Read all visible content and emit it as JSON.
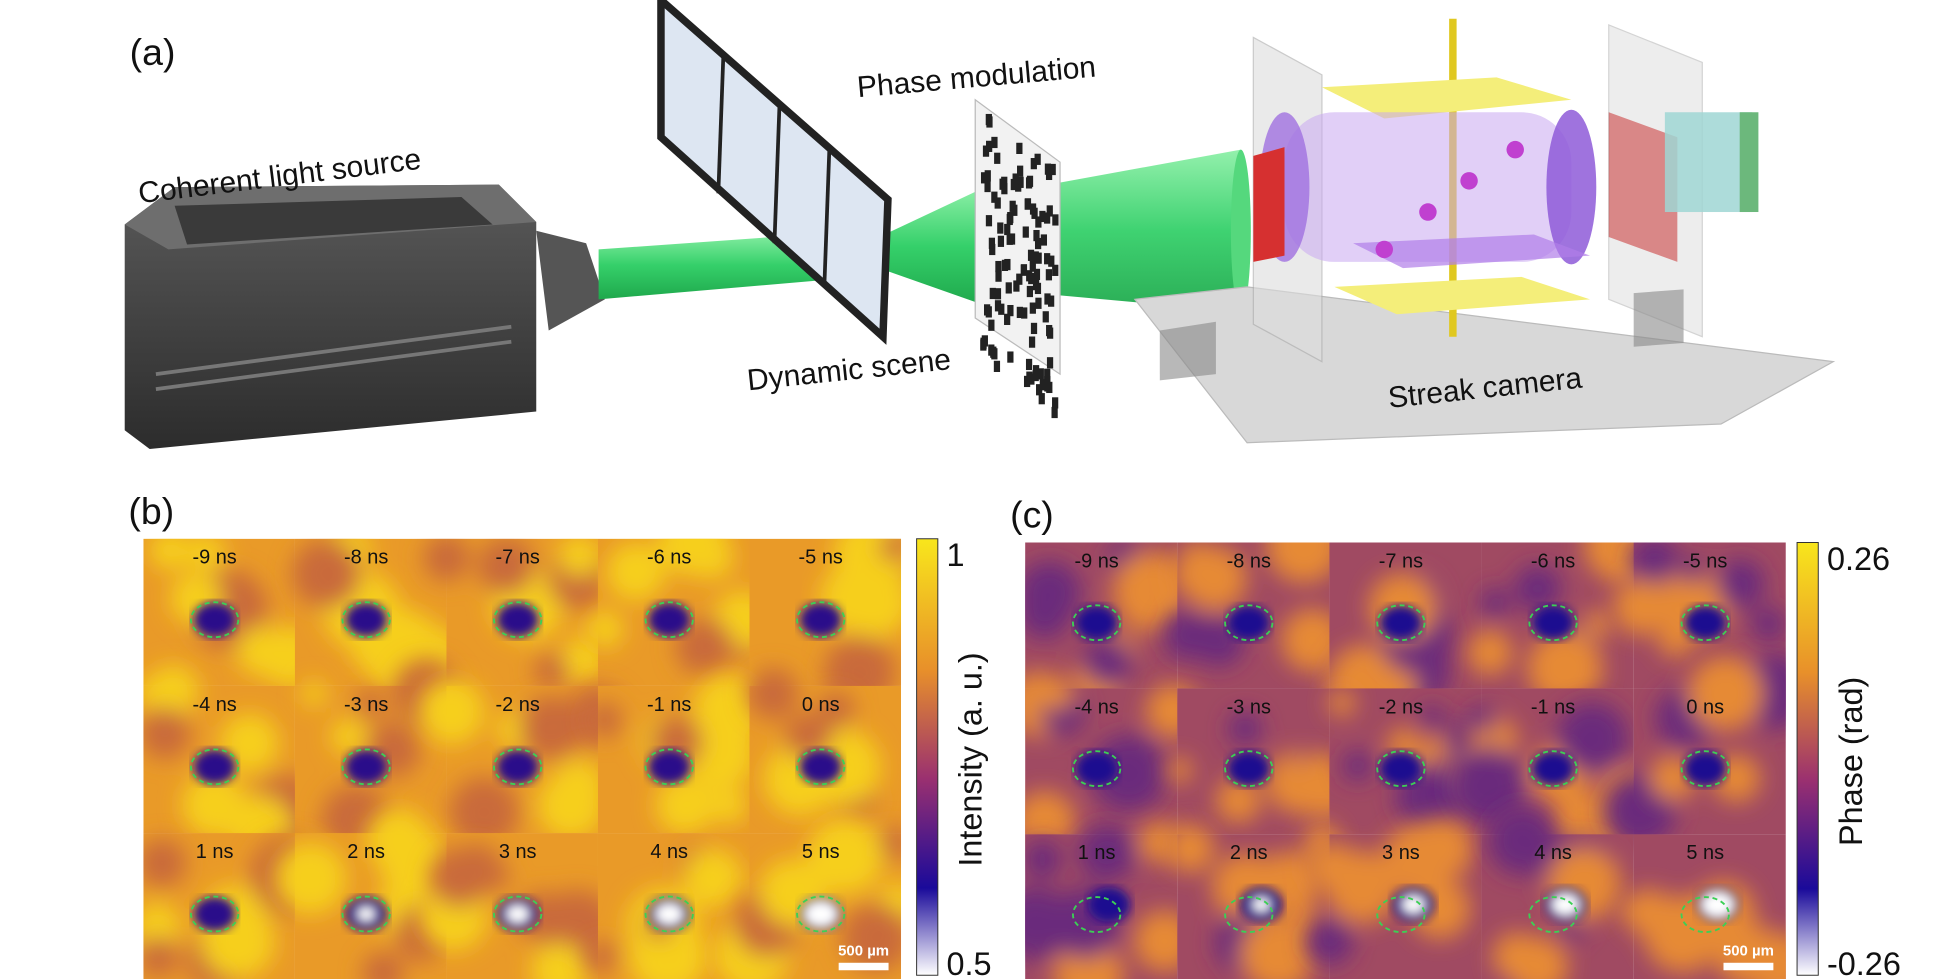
{
  "panel_a": {
    "label": "(a)",
    "light_source": "Coherent light source",
    "scene": "Dynamic scene",
    "modulation": "Phase modulation",
    "camera": "Streak camera"
  },
  "panel_b": {
    "label": "(b)",
    "frames": [
      "-9 ns",
      "-8 ns",
      "-7 ns",
      "-6 ns",
      "-5 ns",
      "-4 ns",
      "-3 ns",
      "-2 ns",
      "-1 ns",
      "0 ns",
      "1 ns",
      "2 ns",
      "3 ns",
      "4 ns",
      "5 ns"
    ],
    "scale_bar": "500 µm",
    "colorbar": {
      "title": "Intensity (a. u.)",
      "max": "1",
      "min": "0.5"
    }
  },
  "panel_c": {
    "label": "(c)",
    "frames": [
      "-9 ns",
      "-8 ns",
      "-7 ns",
      "-6 ns",
      "-5 ns",
      "-4 ns",
      "-3 ns",
      "-2 ns",
      "-1 ns",
      "0 ns",
      "1 ns",
      "2 ns",
      "3 ns",
      "4 ns",
      "5 ns"
    ],
    "scale_bar": "500 µm",
    "colorbar": {
      "title": "Phase (rad)",
      "max": "0.26",
      "min": "-0.26"
    }
  }
}
